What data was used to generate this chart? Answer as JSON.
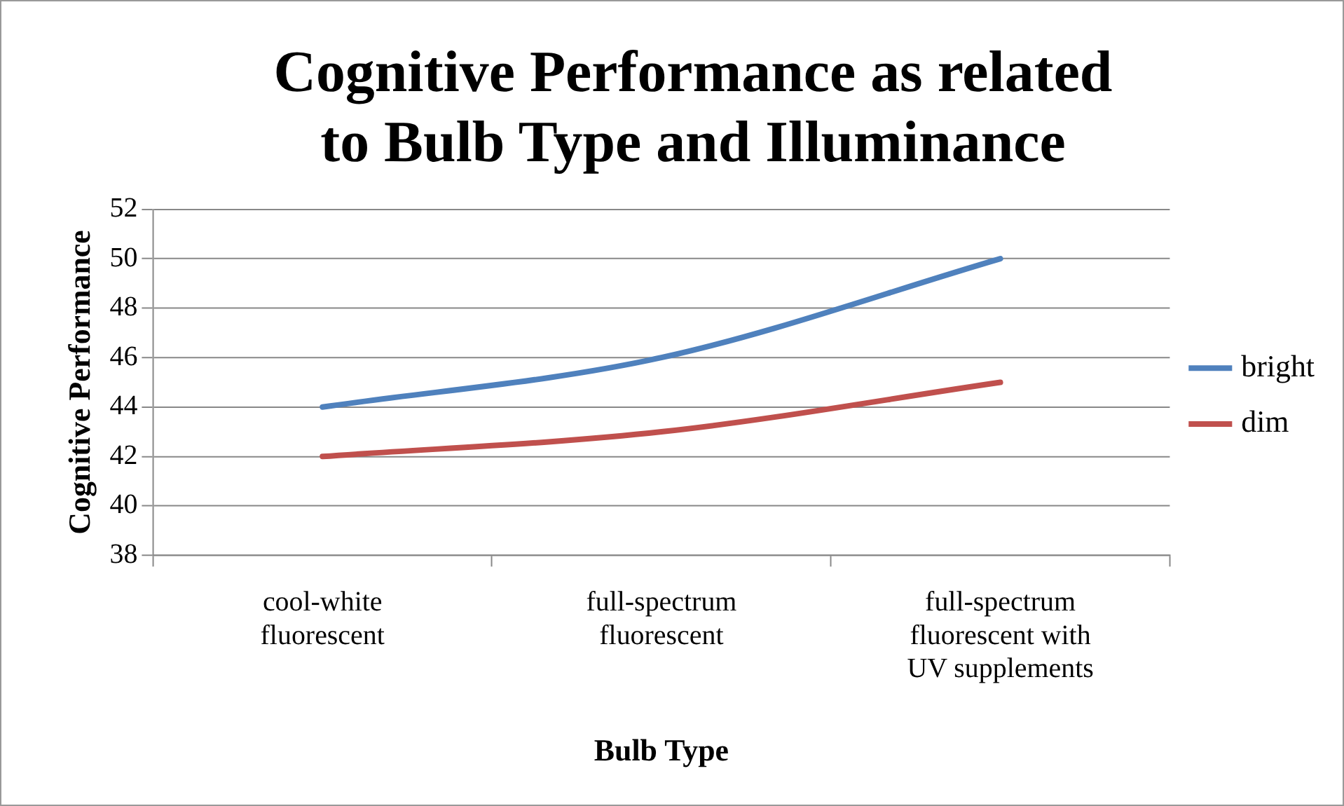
{
  "chart_data": {
    "type": "line",
    "title": "Cognitive Performance as related to Bulb Type and Illuminance",
    "xlabel": "Bulb Type",
    "ylabel": "Cognitive Performance",
    "categories": [
      "cool-white fluorescent",
      "full-spectrum fluorescent",
      "full-spectrum fluorescent with UV supplements"
    ],
    "series": [
      {
        "name": "bright",
        "color": "#4f81bd",
        "values": [
          44,
          46,
          50
        ]
      },
      {
        "name": "dim",
        "color": "#c0504d",
        "values": [
          42,
          43,
          45
        ]
      }
    ],
    "ylim": [
      38,
      52
    ],
    "yticks": [
      38,
      40,
      42,
      44,
      46,
      48,
      50,
      52
    ],
    "grid": "y",
    "legend": "right",
    "marker": "none",
    "line_style": "solid"
  }
}
